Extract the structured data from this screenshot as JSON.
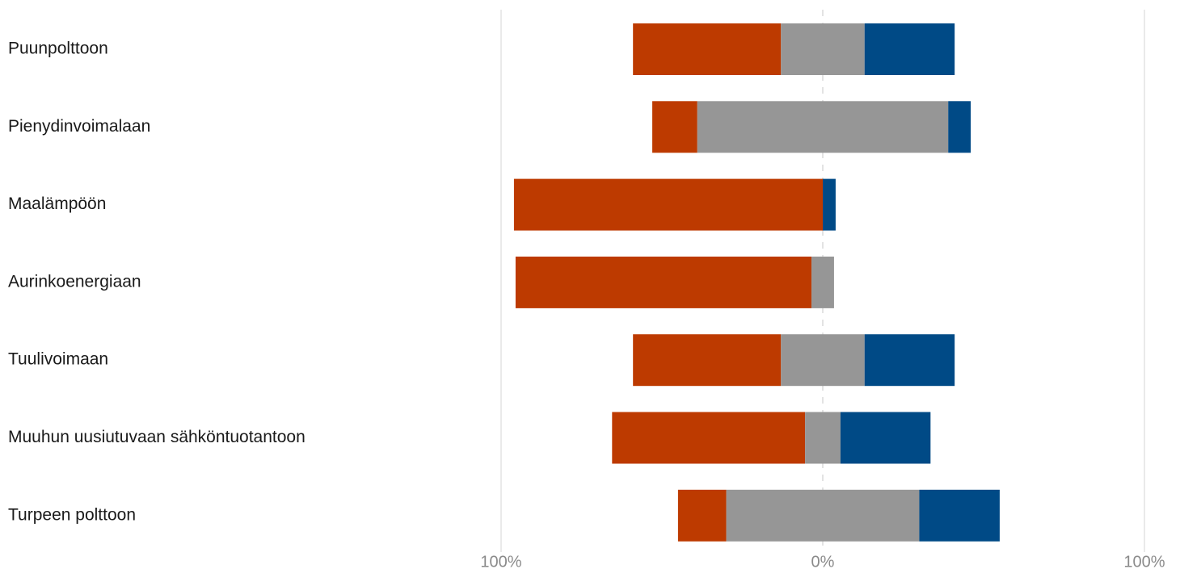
{
  "chart_data": {
    "type": "bar",
    "orientation": "horizontal",
    "stacked": "diverging",
    "title": "",
    "xlabel": "",
    "ylabel": "",
    "xlim": [
      -100,
      100
    ],
    "x_tick_labels": [
      "100%",
      "0%",
      "100%"
    ],
    "x_tick_values": [
      -100,
      0,
      100
    ],
    "grid": true,
    "legend": "none",
    "categories": [
      "Puunpolttoon",
      "Pienydinvoimalaan",
      "Maalämpöön",
      "Aurinkoenergiaan",
      "Tuulivoimaan",
      "Muuhun uusiutuvaan sähköntuotantoon",
      "Turpeen polttoon"
    ],
    "series": [
      {
        "color": "#BD3A00",
        "values": [
          46,
          14,
          96,
          92,
          46,
          60,
          15
        ]
      },
      {
        "color": "#969696",
        "values": [
          26,
          78,
          0,
          7,
          26,
          11,
          60
        ]
      },
      {
        "color": "#004A86",
        "values": [
          28,
          7,
          4,
          0,
          28,
          28,
          25
        ]
      }
    ],
    "neutral_series_index": 1
  }
}
